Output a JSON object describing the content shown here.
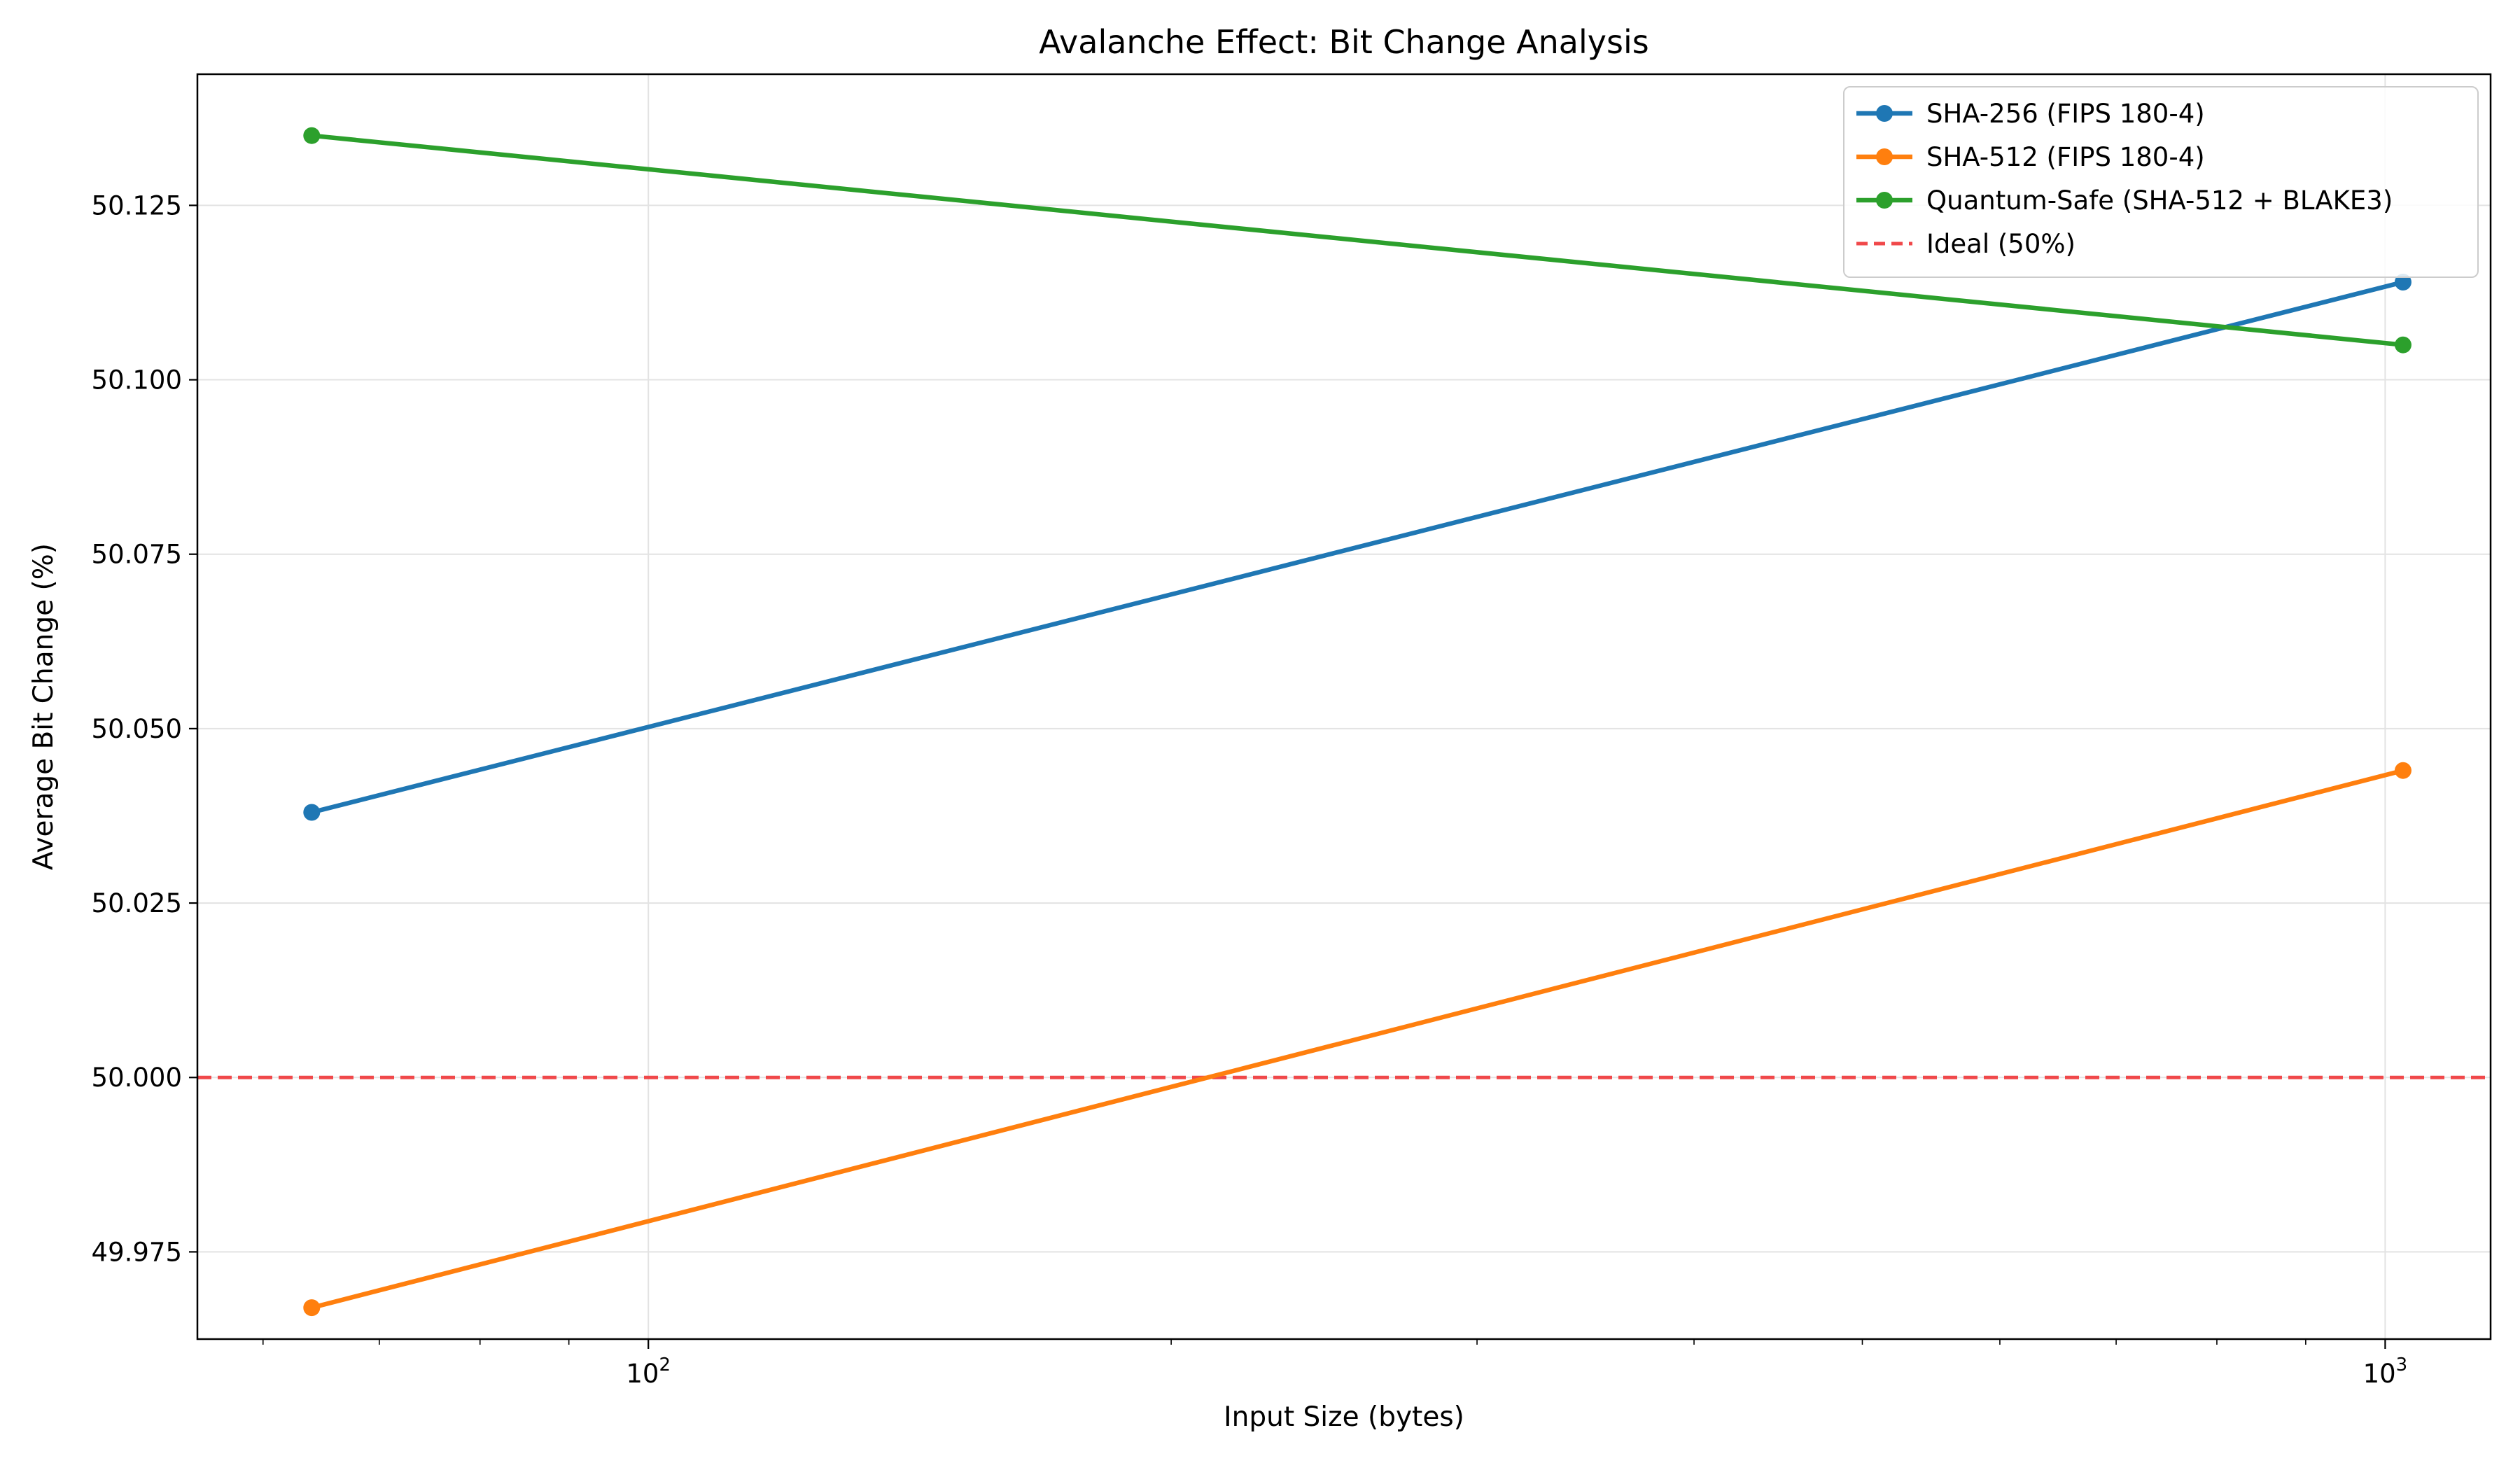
{
  "chart_data": {
    "type": "line",
    "title": "Avalanche Effect: Bit Change Analysis",
    "xlabel": "Input Size (bytes)",
    "ylabel": "Average Bit Change (%)",
    "x_scale": "log",
    "xlim": [
      55,
      1150
    ],
    "ylim": [
      49.9625,
      50.1438
    ],
    "x_major_ticks": [
      {
        "value": 100,
        "base": "10",
        "exp": "2"
      },
      {
        "value": 1000,
        "base": "10",
        "exp": "3"
      }
    ],
    "y_ticks": [
      49.975,
      50.0,
      50.025,
      50.05,
      50.075,
      50.1,
      50.125
    ],
    "y_tick_labels": [
      "49.975",
      "50.000",
      "50.025",
      "50.050",
      "50.075",
      "50.100",
      "50.125"
    ],
    "grid": true,
    "legend_position": "upper right",
    "x": [
      64,
      1024
    ],
    "series": [
      {
        "name": "SHA-256 (FIPS 180-4)",
        "color": "#1f77b4",
        "style": "solid",
        "marker": "circle",
        "values": [
          50.038,
          50.114
        ]
      },
      {
        "name": "SHA-512 (FIPS 180-4)",
        "color": "#ff7f0e",
        "style": "solid",
        "marker": "circle",
        "values": [
          49.967,
          50.044
        ]
      },
      {
        "name": "Quantum-Safe (SHA-512 + BLAKE3)",
        "color": "#2ca02c",
        "style": "solid",
        "marker": "circle",
        "values": [
          50.135,
          50.105
        ]
      }
    ],
    "reference_lines": [
      {
        "name": "Ideal (50%)",
        "color": "#f0484a",
        "style": "dashed",
        "y": 50.0
      }
    ]
  }
}
